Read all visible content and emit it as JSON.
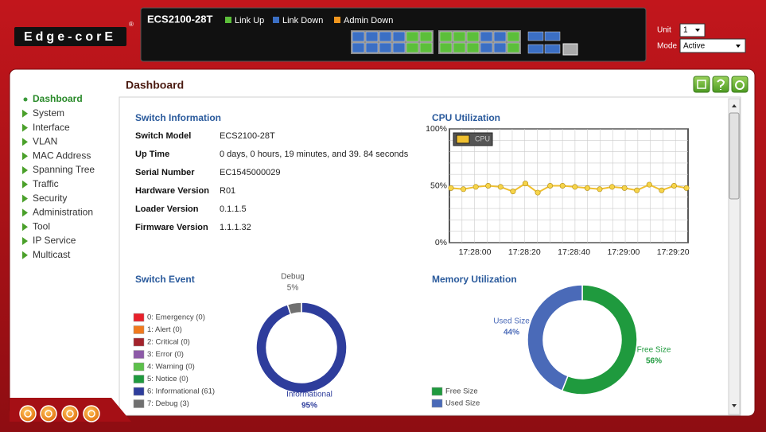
{
  "logo": "Edge-corE",
  "logo_mark": "®",
  "header": {
    "model": "ECS2100-28T",
    "legend": [
      {
        "label": "Link Up",
        "color": "#5cbf3a"
      },
      {
        "label": "Link Down",
        "color": "#3b6fc4"
      },
      {
        "label": "Admin Down",
        "color": "#f0961e"
      }
    ],
    "unit_label": "Unit",
    "unit_value": "1",
    "mode_label": "Mode",
    "mode_value": "Active"
  },
  "nav": [
    "Dashboard",
    "System",
    "Interface",
    "VLAN",
    "MAC Address",
    "Spanning Tree",
    "Traffic",
    "Security",
    "Administration",
    "Tool",
    "IP Service",
    "Multicast"
  ],
  "page_title": "Dashboard",
  "switch_information": {
    "title": "Switch Information",
    "rows": [
      [
        "Switch Model",
        "ECS2100-28T"
      ],
      [
        "Up Time",
        "0 days, 0 hours, 19 minutes, and 39. 84 seconds"
      ],
      [
        "Serial Number",
        "EC1545000029"
      ],
      [
        "Hardware Version",
        "R01"
      ],
      [
        "Loader Version",
        "0.1.1.5"
      ],
      [
        "Firmware Version",
        "1.1.1.32"
      ]
    ]
  },
  "cpu_utilization": {
    "type": "line",
    "title": "CPU Utilization",
    "legend": "CPU",
    "color": "#f0c030",
    "values": [
      48,
      47,
      49,
      50,
      49,
      45,
      52,
      44,
      50,
      50,
      49,
      48,
      47,
      49,
      48,
      46,
      51,
      46,
      50,
      48
    ],
    "ylim": [
      0,
      100
    ],
    "yticks": [
      {
        "value": 0,
        "label": "0%"
      },
      {
        "value": 50,
        "label": "50%"
      },
      {
        "value": 100,
        "label": "100%"
      }
    ],
    "xtick_labels": [
      "17:28:00",
      "17:28:20",
      "17:28:40",
      "17:29:00",
      "17:29:20"
    ],
    "grid": true
  },
  "switch_event": {
    "type": "donut",
    "title": "Switch Event",
    "legend": [
      {
        "label": "0: Emergency (0)",
        "color": "#e8202a"
      },
      {
        "label": "1: Alert (0)",
        "color": "#f07a1e"
      },
      {
        "label": "2: Critical (0)",
        "color": "#a3232c"
      },
      {
        "label": "3: Error (0)",
        "color": "#8d5aa8"
      },
      {
        "label": "4: Warning (0)",
        "color": "#5cc04a"
      },
      {
        "label": "5: Notice (0)",
        "color": "#1f9a3e"
      },
      {
        "label": "6: Informational (61)",
        "color": "#2e3d9c"
      },
      {
        "label": "7: Debug (3)",
        "color": "#707070"
      }
    ],
    "segments": [
      {
        "name": "Informational",
        "value": 95,
        "value_label": "95%",
        "color": "#2e3d9c"
      },
      {
        "name": "Debug",
        "value": 5,
        "value_label": "5%",
        "color": "#707070"
      }
    ]
  },
  "memory_utilization": {
    "type": "donut",
    "title": "Memory Utilization",
    "segments": [
      {
        "name": "Free Size",
        "value": 56,
        "value_label": "56%",
        "color": "#1f9a3e"
      },
      {
        "name": "Used Size",
        "value": 44,
        "value_label": "44%",
        "color": "#4a6ab8"
      }
    ]
  }
}
